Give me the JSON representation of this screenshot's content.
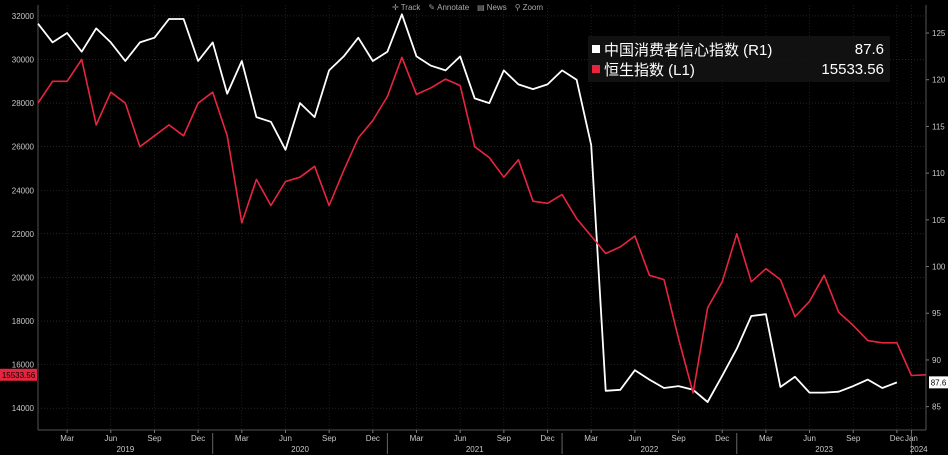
{
  "toolbar": {
    "items": [
      {
        "label": "Track",
        "icon": "crosshair-icon",
        "glyph": "✛"
      },
      {
        "label": "Annotate",
        "icon": "pencil-icon",
        "glyph": "✎"
      },
      {
        "label": "News",
        "icon": "news-icon",
        "glyph": "▤"
      },
      {
        "label": "Zoom",
        "icon": "magnifier-icon",
        "glyph": "⚲"
      }
    ]
  },
  "legend": {
    "series": [
      {
        "name": "中国消费者信心指数 (R1)",
        "value": "87.6",
        "color": "#ffffff"
      },
      {
        "name": "恒生指数 (L1)",
        "value": "15533.56",
        "color": "#e8253f"
      }
    ]
  },
  "chart_data": {
    "type": "line",
    "left_axis": {
      "min": 13000,
      "max": 32500,
      "ticks": [
        "14000",
        "16000",
        "18000",
        "20000",
        "22000",
        "24000",
        "26000",
        "28000",
        "30000",
        "32000"
      ]
    },
    "right_axis": {
      "min": 82.5,
      "max": 128,
      "ticks": [
        "85",
        "90",
        "95",
        "100",
        "105",
        "110",
        "115",
        "120",
        "125"
      ]
    },
    "last_values": {
      "left": "15533.56",
      "right": "87.6"
    },
    "x_axis": {
      "start": "2019-01",
      "end": "2024-02",
      "month_labels": [
        "Mar",
        "Jun",
        "Sep",
        "Dec",
        "Mar",
        "Jun",
        "Sep",
        "Dec",
        "Mar",
        "Jun",
        "Sep",
        "Dec",
        "Mar",
        "Jun",
        "Sep",
        "Dec",
        "Mar",
        "Jun",
        "Sep",
        "Dec",
        "Jan"
      ],
      "year_labels": [
        "2019",
        "2020",
        "2021",
        "2022",
        "2023",
        "2024"
      ]
    },
    "series": [
      {
        "name": "中国消费者信心指数",
        "axis": "right",
        "color": "#ffffff",
        "points": [
          [
            "2019-01",
            126.0
          ],
          [
            "2019-02",
            124.0
          ],
          [
            "2019-03",
            125.0
          ],
          [
            "2019-04",
            123.0
          ],
          [
            "2019-05",
            125.5
          ],
          [
            "2019-06",
            124.0
          ],
          [
            "2019-07",
            122.0
          ],
          [
            "2019-08",
            124.0
          ],
          [
            "2019-09",
            124.5
          ],
          [
            "2019-10",
            126.5
          ],
          [
            "2019-11",
            126.5
          ],
          [
            "2019-12",
            122.0
          ],
          [
            "2020-01",
            124.0
          ],
          [
            "2020-02",
            118.5
          ],
          [
            "2020-03",
            122.0
          ],
          [
            "2020-04",
            116.0
          ],
          [
            "2020-05",
            115.5
          ],
          [
            "2020-06",
            112.5
          ],
          [
            "2020-07",
            117.5
          ],
          [
            "2020-08",
            116.0
          ],
          [
            "2020-09",
            121.0
          ],
          [
            "2020-10",
            122.5
          ],
          [
            "2020-11",
            124.5
          ],
          [
            "2020-12",
            122.0
          ],
          [
            "2021-01",
            123.0
          ],
          [
            "2021-02",
            127.0
          ],
          [
            "2021-03",
            122.5
          ],
          [
            "2021-04",
            121.5
          ],
          [
            "2021-05",
            121.0
          ],
          [
            "2021-06",
            122.5
          ],
          [
            "2021-07",
            118.0
          ],
          [
            "2021-08",
            117.5
          ],
          [
            "2021-09",
            121.0
          ],
          [
            "2021-10",
            119.5
          ],
          [
            "2021-11",
            119.0
          ],
          [
            "2021-12",
            119.5
          ],
          [
            "2022-01",
            121.0
          ],
          [
            "2022-02",
            120.0
          ],
          [
            "2022-03",
            113.0
          ],
          [
            "2022-04",
            86.7
          ],
          [
            "2022-05",
            86.8
          ],
          [
            "2022-06",
            88.9
          ],
          [
            "2022-07",
            87.9
          ],
          [
            "2022-08",
            87.0
          ],
          [
            "2022-09",
            87.2
          ],
          [
            "2022-10",
            86.8
          ],
          [
            "2022-11",
            85.5
          ],
          [
            "2022-12",
            88.3
          ],
          [
            "2023-01",
            91.2
          ],
          [
            "2023-02",
            94.7
          ],
          [
            "2023-03",
            94.9
          ],
          [
            "2023-04",
            87.1
          ],
          [
            "2023-05",
            88.2
          ],
          [
            "2023-06",
            86.5
          ],
          [
            "2023-07",
            86.5
          ],
          [
            "2023-08",
            86.6
          ],
          [
            "2023-09",
            87.2
          ],
          [
            "2023-10",
            87.9
          ],
          [
            "2023-11",
            87.0
          ],
          [
            "2023-12",
            87.6
          ]
        ]
      },
      {
        "name": "恒生指数",
        "axis": "left",
        "color": "#e8253f",
        "points": [
          [
            "2019-01",
            28000
          ],
          [
            "2019-02",
            29000
          ],
          [
            "2019-03",
            29000
          ],
          [
            "2019-04",
            30000
          ],
          [
            "2019-05",
            27000
          ],
          [
            "2019-06",
            28500
          ],
          [
            "2019-07",
            28000
          ],
          [
            "2019-08",
            26000
          ],
          [
            "2019-09",
            26500
          ],
          [
            "2019-10",
            27000
          ],
          [
            "2019-11",
            26500
          ],
          [
            "2019-12",
            28000
          ],
          [
            "2020-01",
            28500
          ],
          [
            "2020-02",
            26500
          ],
          [
            "2020-03",
            22500
          ],
          [
            "2020-04",
            24500
          ],
          [
            "2020-05",
            23300
          ],
          [
            "2020-06",
            24400
          ],
          [
            "2020-07",
            24600
          ],
          [
            "2020-08",
            25100
          ],
          [
            "2020-09",
            23300
          ],
          [
            "2020-10",
            24900
          ],
          [
            "2020-11",
            26400
          ],
          [
            "2020-12",
            27200
          ],
          [
            "2021-01",
            28300
          ],
          [
            "2021-02",
            30100
          ],
          [
            "2021-03",
            28400
          ],
          [
            "2021-04",
            28700
          ],
          [
            "2021-05",
            29100
          ],
          [
            "2021-06",
            28800
          ],
          [
            "2021-07",
            26000
          ],
          [
            "2021-08",
            25500
          ],
          [
            "2021-09",
            24600
          ],
          [
            "2021-10",
            25400
          ],
          [
            "2021-11",
            23500
          ],
          [
            "2021-12",
            23400
          ],
          [
            "2022-01",
            23800
          ],
          [
            "2022-02",
            22700
          ],
          [
            "2022-03",
            21900
          ],
          [
            "2022-04",
            21100
          ],
          [
            "2022-05",
            21400
          ],
          [
            "2022-06",
            21900
          ],
          [
            "2022-07",
            20100
          ],
          [
            "2022-08",
            19900
          ],
          [
            "2022-09",
            17200
          ],
          [
            "2022-10",
            14700
          ],
          [
            "2022-11",
            18600
          ],
          [
            "2022-12",
            19800
          ],
          [
            "2023-01",
            22000
          ],
          [
            "2023-02",
            19800
          ],
          [
            "2023-03",
            20400
          ],
          [
            "2023-04",
            19900
          ],
          [
            "2023-05",
            18200
          ],
          [
            "2023-06",
            18900
          ],
          [
            "2023-07",
            20100
          ],
          [
            "2023-08",
            18400
          ],
          [
            "2023-09",
            17800
          ],
          [
            "2023-10",
            17100
          ],
          [
            "2023-11",
            17000
          ],
          [
            "2023-12",
            17000
          ],
          [
            "2024-01",
            15500
          ],
          [
            "2024-02",
            15533.56
          ]
        ]
      }
    ]
  }
}
